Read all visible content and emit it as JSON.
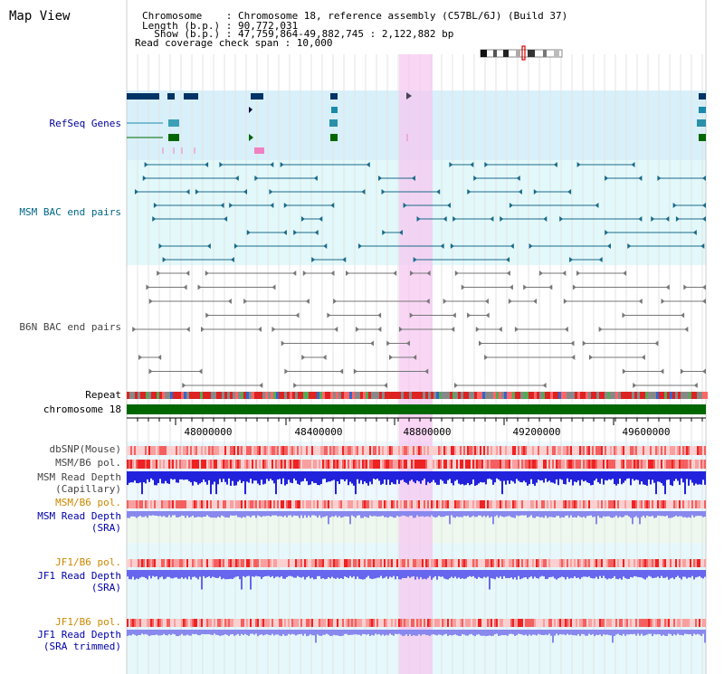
{
  "page": {
    "title": "Map View",
    "info": {
      "line1": "Chromosome    : Chromosome 18, reference assembly (C57BL/6J) (Build 37)",
      "line2": "Length (b.p.) : 90,772,031",
      "line3": "  Show (b.p.) : 47,759,864-49,882,745 : 2,122,882 bp",
      "line4": "Read coverage check span : 10,000"
    }
  },
  "tracks": {
    "refseq": "RefSeq Genes",
    "msm_bac": "MSM BAC end pairs",
    "b6n_bac": "B6N BAC end pairs",
    "repeat": "Repeat",
    "chromosome": "chromosome 18",
    "dbsnp": "dbSNP(Mouse)",
    "msm_b6_pol_1": "MSM/B6 pol.",
    "msm_read_depth_cap": "MSM Read Depth",
    "msm_read_depth_cap_2": "(Capillary)",
    "msm_b6_pol_2": "MSM/B6 pol.",
    "msm_read_depth_sra": "MSM Read Depth",
    "msm_read_depth_sra_2": "(SRA)",
    "jf1_b6_pol_1": "JF1/B6 pol.",
    "jf1_read_depth_sra": "JF1 Read Depth",
    "jf1_read_depth_sra_2": "(SRA)",
    "jf1_b6_pol_2": "JF1/B6 pol.",
    "jf1_read_depth_trim": "JF1 Read Depth",
    "jf1_read_depth_trim_2": "(SRA trimmed)"
  },
  "axis": {
    "ticks": [
      "48000000",
      "48400000",
      "48800000",
      "49200000",
      "49600000"
    ]
  },
  "colors": {
    "refseq_label": "#000099",
    "msm_label": "#006688",
    "b6n_label": "#444444",
    "pol_orange": "#cc8800",
    "depth_blue": "#0000aa",
    "highlight": "#f5c8f0"
  }
}
